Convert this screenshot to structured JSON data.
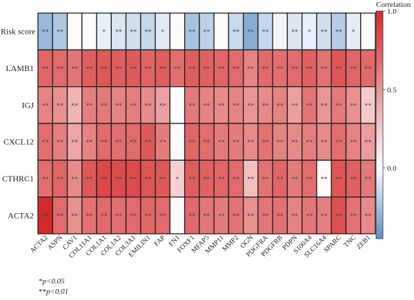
{
  "chart_data": {
    "type": "heatmap",
    "rows": [
      "Risk score",
      "LAMB1",
      "IGJ",
      "CXCL12",
      "CTHRC1",
      "ACTA2"
    ],
    "columns": [
      "ACTA2",
      "ASPN",
      "CAV1",
      "COL11A1",
      "COL1A1",
      "COL1A2",
      "COL3A1",
      "EMILIN1",
      "FAP",
      "FN1",
      "FOXF1",
      "MFAP5",
      "MMP11",
      "MMP2",
      "OGN",
      "PDGFRA",
      "PDGFRB",
      "PDPN",
      "S100A4",
      "SLC16A4",
      "SPARC",
      "TNC",
      "ZEB1"
    ],
    "values": [
      [
        -0.28,
        -0.22,
        0.02,
        0.02,
        -0.06,
        -0.1,
        -0.13,
        -0.16,
        -0.08,
        0.02,
        -0.24,
        -0.18,
        0.02,
        -0.15,
        -0.33,
        -0.16,
        -0.04,
        -0.1,
        -0.06,
        -0.13,
        -0.2,
        -0.07,
        0.0
      ],
      [
        0.72,
        0.7,
        0.65,
        0.75,
        0.78,
        0.76,
        0.77,
        0.73,
        0.76,
        0.68,
        0.76,
        0.74,
        0.72,
        0.7,
        0.58,
        0.7,
        0.68,
        0.7,
        0.74,
        0.66,
        0.8,
        0.72,
        0.7
      ],
      [
        0.58,
        0.52,
        0.35,
        0.6,
        0.62,
        0.58,
        0.6,
        0.55,
        0.45,
        0.0,
        0.62,
        0.58,
        0.55,
        0.58,
        0.5,
        0.55,
        0.58,
        0.45,
        0.65,
        0.5,
        0.62,
        0.52,
        0.25
      ],
      [
        0.68,
        0.6,
        0.42,
        0.58,
        0.7,
        0.68,
        0.7,
        0.78,
        0.62,
        0.02,
        0.72,
        0.68,
        0.62,
        0.62,
        0.55,
        0.66,
        0.58,
        0.55,
        0.6,
        0.55,
        0.68,
        0.58,
        0.46
      ],
      [
        0.68,
        0.72,
        0.55,
        0.78,
        0.86,
        0.84,
        0.84,
        0.8,
        0.78,
        0.22,
        0.76,
        0.74,
        0.72,
        0.7,
        0.3,
        0.66,
        0.72,
        0.62,
        0.68,
        0.02,
        0.8,
        0.74,
        0.62
      ],
      [
        1.0,
        0.7,
        0.52,
        0.66,
        0.7,
        0.68,
        0.7,
        0.72,
        0.7,
        0.02,
        0.7,
        0.64,
        0.62,
        0.66,
        0.52,
        0.64,
        0.66,
        0.58,
        0.64,
        0.6,
        0.82,
        0.66,
        0.55
      ]
    ],
    "significance": [
      [
        "**",
        "**",
        "",
        "",
        "*",
        "**",
        "**",
        "**",
        "*",
        "",
        "**",
        "**",
        "",
        "**",
        "**",
        "**",
        "",
        "**",
        "*",
        "**",
        "**",
        "*",
        ""
      ],
      [
        "**",
        "**",
        "**",
        "**",
        "**",
        "**",
        "**",
        "**",
        "**",
        "**",
        "**",
        "**",
        "**",
        "**",
        "**",
        "**",
        "**",
        "**",
        "**",
        "**",
        "**",
        "**",
        "**"
      ],
      [
        "**",
        "**",
        "**",
        "**",
        "**",
        "**",
        "**",
        "**",
        "**",
        "",
        "**",
        "**",
        "**",
        "**",
        "**",
        "**",
        "**",
        "**",
        "**",
        "**",
        "**",
        "**",
        "**"
      ],
      [
        "**",
        "**",
        "**",
        "**",
        "**",
        "**",
        "**",
        "**",
        "**",
        "",
        "**",
        "**",
        "**",
        "**",
        "**",
        "**",
        "**",
        "**",
        "**",
        "**",
        "**",
        "**",
        "**"
      ],
      [
        "**",
        "**",
        "**",
        "**",
        "**",
        "**",
        "**",
        "**",
        "**",
        "*",
        "**",
        "**",
        "**",
        "**",
        "**",
        "**",
        "**",
        "**",
        "**",
        "**",
        "**",
        "**",
        "**"
      ],
      [
        "**",
        "**",
        "**",
        "**",
        "**",
        "**",
        "**",
        "**",
        "**",
        "",
        "**",
        "**",
        "**",
        "**",
        "**",
        "**",
        "**",
        "**",
        "**",
        "**",
        "**",
        "**",
        "**"
      ]
    ],
    "colorbar": {
      "title": "Correlation",
      "range": [
        -0.45,
        1.0
      ],
      "ticks": [
        1.0,
        0.5,
        0.0
      ],
      "tick_labels": [
        "1.0",
        "0.5",
        "0.0"
      ],
      "colors": {
        "low": "#5b8fc4",
        "mid": "#ffffff",
        "high": "#d42a2a"
      }
    }
  },
  "footnotes": [
    {
      "symbol": "*",
      "text": "p<0.05"
    },
    {
      "symbol": "**",
      "text": "p<0.01"
    }
  ]
}
